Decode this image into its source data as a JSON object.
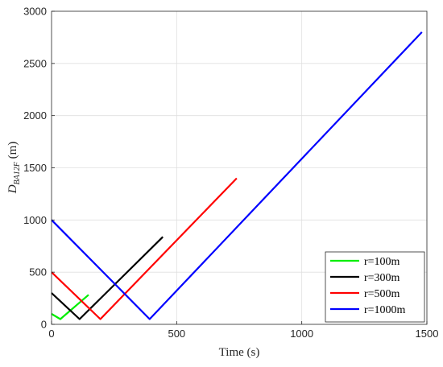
{
  "chart_data": {
    "type": "line",
    "xlabel": "Time (s)",
    "ylabel_main": "D",
    "ylabel_sub": "BA12F",
    "ylabel_unit": " (m)",
    "xlim": [
      0,
      1500
    ],
    "ylim": [
      0,
      3000
    ],
    "xticks": [
      0,
      500,
      1000,
      1500
    ],
    "yticks": [
      0,
      500,
      1000,
      1500,
      2000,
      2500,
      3000
    ],
    "grid": true,
    "legend_position": "bottom-right",
    "series": [
      {
        "name": "r=100m",
        "color": "#00ee00",
        "x": [
          0,
          35,
          148
        ],
        "y": [
          100,
          50,
          283
        ]
      },
      {
        "name": "r=300m",
        "color": "#000000",
        "x": [
          0,
          112,
          445
        ],
        "y": [
          300,
          50,
          838
        ]
      },
      {
        "name": "r=500m",
        "color": "#ff0000",
        "x": [
          0,
          195,
          740
        ],
        "y": [
          500,
          50,
          1400
        ]
      },
      {
        "name": "r=1000m",
        "color": "#0000ff",
        "x": [
          0,
          392,
          1480
        ],
        "y": [
          1000,
          50,
          2800
        ]
      }
    ]
  }
}
